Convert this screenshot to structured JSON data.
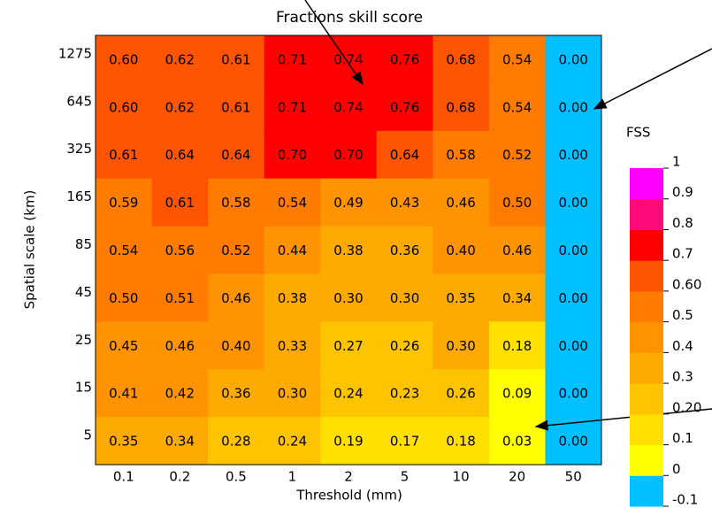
{
  "chart_data": {
    "type": "heatmap",
    "title": "Fractions skill score",
    "x_label": "Threshold (mm)",
    "y_label": "Spatial scale (km)",
    "x": [
      "0.1",
      "0.2",
      "0.5",
      "1",
      "2",
      "5",
      "10",
      "20",
      "50"
    ],
    "y": [
      "1275",
      "645",
      "325",
      "165",
      "85",
      "45",
      "25",
      "15",
      "5"
    ],
    "values": [
      [
        0.6,
        0.62,
        0.61,
        0.71,
        0.74,
        0.76,
        0.68,
        0.54,
        0.0
      ],
      [
        0.6,
        0.62,
        0.61,
        0.71,
        0.74,
        0.76,
        0.68,
        0.54,
        0.0
      ],
      [
        0.61,
        0.64,
        0.64,
        0.7,
        0.7,
        0.64,
        0.58,
        0.52,
        0.0
      ],
      [
        0.59,
        0.61,
        0.58,
        0.54,
        0.49,
        0.43,
        0.46,
        0.5,
        0.0
      ],
      [
        0.54,
        0.56,
        0.52,
        0.44,
        0.38,
        0.36,
        0.4,
        0.46,
        0.0
      ],
      [
        0.5,
        0.51,
        0.46,
        0.38,
        0.3,
        0.3,
        0.35,
        0.34,
        0.0
      ],
      [
        0.45,
        0.46,
        0.4,
        0.33,
        0.27,
        0.26,
        0.3,
        0.18,
        0.0
      ],
      [
        0.41,
        0.42,
        0.36,
        0.3,
        0.24,
        0.23,
        0.26,
        0.09,
        0.0
      ],
      [
        0.35,
        0.34,
        0.28,
        0.24,
        0.19,
        0.17,
        0.18,
        0.03,
        0.0
      ]
    ],
    "value_labels": [
      [
        "0.60",
        "0.62",
        "0.61",
        "0.71",
        "0.74",
        "0.76",
        "0.68",
        "0.54",
        "0.00"
      ],
      [
        "0.60",
        "0.62",
        "0.61",
        "0.71",
        "0.74",
        "0.76",
        "0.68",
        "0.54",
        "0.00"
      ],
      [
        "0.61",
        "0.64",
        "0.64",
        "0.70",
        "0.70",
        "0.64",
        "0.58",
        "0.52",
        "0.00"
      ],
      [
        "0.59",
        "0.61",
        "0.58",
        "0.54",
        "0.49",
        "0.43",
        "0.46",
        "0.50",
        "0.00"
      ],
      [
        "0.54",
        "0.56",
        "0.52",
        "0.44",
        "0.38",
        "0.36",
        "0.40",
        "0.46",
        "0.00"
      ],
      [
        "0.50",
        "0.51",
        "0.46",
        "0.38",
        "0.30",
        "0.30",
        "0.35",
        "0.34",
        "0.00"
      ],
      [
        "0.45",
        "0.46",
        "0.40",
        "0.33",
        "0.27",
        "0.26",
        "0.30",
        "0.18",
        "0.00"
      ],
      [
        "0.41",
        "0.42",
        "0.36",
        "0.30",
        "0.24",
        "0.23",
        "0.26",
        "0.09",
        "0.00"
      ],
      [
        "0.35",
        "0.34",
        "0.28",
        "0.24",
        "0.19",
        "0.17",
        "0.18",
        "0.03",
        "0.00"
      ]
    ],
    "colorbar": {
      "title": "FSS",
      "levels": [
        -0.1,
        0,
        0.1,
        {
          "value": 0.2,
          "label": "0.20"
        },
        0.3,
        0.4,
        0.5,
        {
          "value": 0.6,
          "label": "0.60"
        },
        0.7,
        0.8,
        0.9,
        1
      ],
      "colors": [
        "#00c0ff",
        "#ffff00",
        "#ffe000",
        "#ffc400",
        "#ffaa00",
        "#ff9400",
        "#ff7c00",
        "#ff5400",
        "#ff0000",
        "#ff0a78",
        "#ff00ff"
      ]
    }
  }
}
